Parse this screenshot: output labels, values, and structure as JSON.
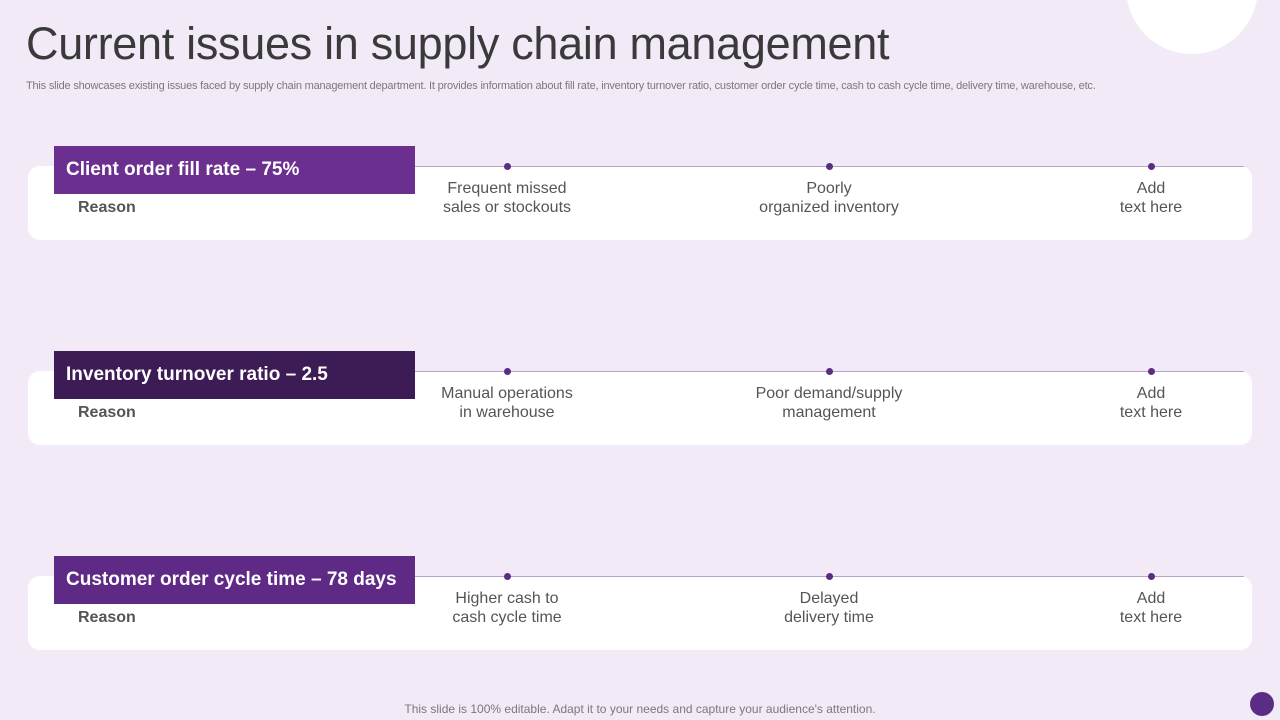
{
  "title": "Current issues in supply chain management",
  "subtitle": "This slide showcases existing issues faced by supply chain management department. It provides information about fill rate, inventory turnover ratio, customer order cycle time, cash to cash cycle time, delivery time, warehouse, etc.",
  "colors": {
    "background": "#f2eaf7",
    "header_1": "#6a2f8f",
    "header_2": "#3d1b55",
    "header_3": "#5e2a86",
    "dot": "#5b2c83"
  },
  "rows": [
    {
      "heading": "Client order fill rate – 75%",
      "reason_label": "Reason",
      "reasons": [
        {
          "line1": "Frequent missed",
          "line2": "sales or stockouts"
        },
        {
          "line1": "Poorly",
          "line2": "organized inventory"
        },
        {
          "line1": "Add",
          "line2": "text here"
        }
      ]
    },
    {
      "heading": "Inventory turnover ratio – 2.5",
      "reason_label": "Reason",
      "reasons": [
        {
          "line1": "Manual operations",
          "line2": "in warehouse"
        },
        {
          "line1": "Poor demand/supply",
          "line2": "management"
        },
        {
          "line1": "Add",
          "line2": "text here"
        }
      ]
    },
    {
      "heading": "Customer order cycle time – 78 days",
      "reason_label": "Reason",
      "reasons": [
        {
          "line1": "Higher cash to",
          "line2": "cash cycle time"
        },
        {
          "line1": "Delayed",
          "line2": "delivery time"
        },
        {
          "line1": "Add",
          "line2": "text here"
        }
      ]
    }
  ],
  "footer": "This slide is 100% editable. Adapt it to your needs and capture your audience's attention."
}
